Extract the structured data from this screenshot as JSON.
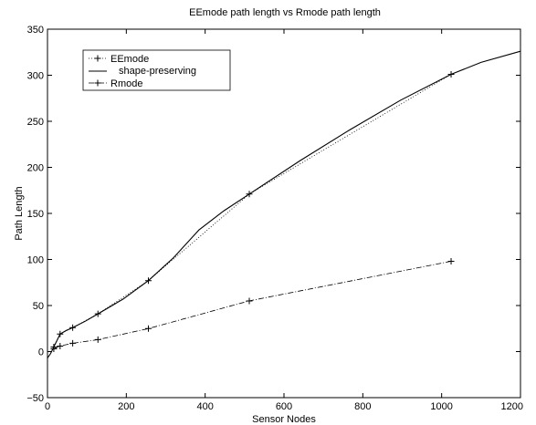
{
  "chart_data": {
    "type": "line",
    "title": "EEmode path length vs Rmode path length",
    "xlabel": "Sensor Nodes",
    "ylabel": "Path Length",
    "xlim": [
      0,
      1200
    ],
    "ylim": [
      -50,
      350
    ],
    "xticks": [
      0,
      200,
      400,
      600,
      800,
      1000,
      1200
    ],
    "yticks": [
      -50,
      0,
      50,
      100,
      150,
      200,
      250,
      300,
      350
    ],
    "grid": false,
    "legend_position": "top-left",
    "series": [
      {
        "name": "EEmode",
        "style": "dotted line with + markers",
        "x": [
          16,
          32,
          64,
          128,
          256,
          512,
          1024
        ],
        "y": [
          5,
          19,
          26,
          41,
          77,
          171,
          301
        ]
      },
      {
        "name": "shape-preserving",
        "style": "solid line",
        "x": [
          0,
          8,
          16,
          24,
          32,
          48,
          64,
          96,
          128,
          192,
          256,
          320,
          384,
          448,
          512,
          640,
          768,
          896,
          1024,
          1100,
          1200
        ],
        "y": [
          -7,
          -2,
          5,
          12,
          19,
          23,
          26,
          33,
          41,
          57,
          77,
          102,
          132,
          153,
          171,
          207,
          241,
          273,
          301,
          314,
          326
        ]
      },
      {
        "name": "Rmode",
        "style": "dash-dot line with + markers",
        "x": [
          16,
          32,
          64,
          128,
          256,
          512,
          1024
        ],
        "y": [
          3,
          6,
          9,
          13,
          25,
          55,
          98
        ]
      }
    ]
  }
}
